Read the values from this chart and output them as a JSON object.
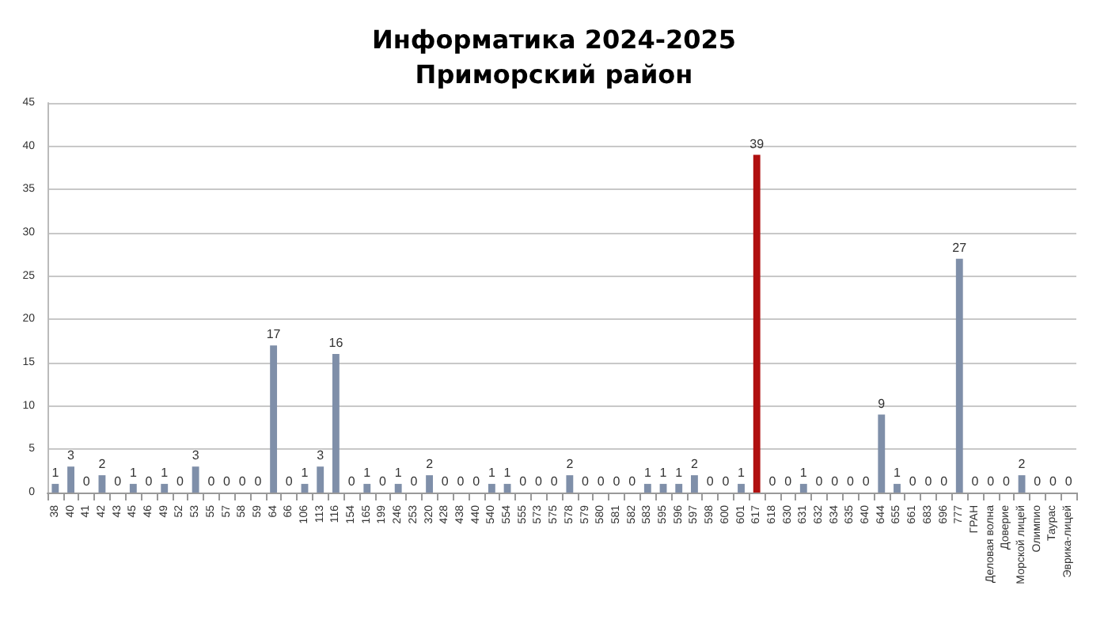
{
  "chart_data": {
    "type": "bar",
    "title": "Информатика 2024-2025",
    "subtitle": "Приморский район",
    "categories": [
      "38",
      "40",
      "41",
      "42",
      "43",
      "45",
      "46",
      "49",
      "52",
      "53",
      "55",
      "57",
      "58",
      "59",
      "64",
      "66",
      "106",
      "113",
      "116",
      "154",
      "165",
      "199",
      "246",
      "253",
      "320",
      "428",
      "438",
      "440",
      "540",
      "554",
      "555",
      "573",
      "575",
      "578",
      "579",
      "580",
      "581",
      "582",
      "583",
      "595",
      "596",
      "597",
      "598",
      "600",
      "601",
      "617",
      "618",
      "630",
      "631",
      "632",
      "634",
      "635",
      "640",
      "644",
      "655",
      "661",
      "683",
      "696",
      "777",
      "ГРАН",
      "Деловая волна",
      "Доверие",
      "Морской лицей",
      "Олимпио",
      "Таурас",
      "Эврика-лицей"
    ],
    "values": [
      1,
      3,
      0,
      2,
      0,
      1,
      0,
      1,
      0,
      3,
      0,
      0,
      0,
      0,
      17,
      0,
      1,
      3,
      16,
      0,
      1,
      0,
      1,
      0,
      2,
      0,
      0,
      0,
      1,
      1,
      0,
      0,
      0,
      2,
      0,
      0,
      0,
      0,
      1,
      1,
      1,
      2,
      0,
      0,
      1,
      39,
      0,
      0,
      1,
      0,
      0,
      0,
      0,
      9,
      1,
      0,
      0,
      0,
      27,
      0,
      0,
      0,
      2,
      0,
      0,
      0
    ],
    "colors": [
      "#7f8fa9",
      "#7f8fa9",
      "#7f8fa9",
      "#7f8fa9",
      "#7f8fa9",
      "#7f8fa9",
      "#7f8fa9",
      "#7f8fa9",
      "#7f8fa9",
      "#7f8fa9",
      "#7f8fa9",
      "#7f8fa9",
      "#7f8fa9",
      "#7f8fa9",
      "#7f8fa9",
      "#7f8fa9",
      "#7f8fa9",
      "#7f8fa9",
      "#7f8fa9",
      "#7f8fa9",
      "#7f8fa9",
      "#7f8fa9",
      "#7f8fa9",
      "#7f8fa9",
      "#7f8fa9",
      "#7f8fa9",
      "#7f8fa9",
      "#7f8fa9",
      "#7f8fa9",
      "#7f8fa9",
      "#7f8fa9",
      "#7f8fa9",
      "#7f8fa9",
      "#7f8fa9",
      "#7f8fa9",
      "#7f8fa9",
      "#7f8fa9",
      "#7f8fa9",
      "#7f8fa9",
      "#7f8fa9",
      "#7f8fa9",
      "#7f8fa9",
      "#7f8fa9",
      "#7f8fa9",
      "#7f8fa9",
      "#b01010",
      "#7f8fa9",
      "#7f8fa9",
      "#7f8fa9",
      "#7f8fa9",
      "#7f8fa9",
      "#7f8fa9",
      "#7f8fa9",
      "#7f8fa9",
      "#7f8fa9",
      "#7f8fa9",
      "#7f8fa9",
      "#7f8fa9",
      "#7f8fa9",
      "#7f8fa9",
      "#7f8fa9",
      "#7f8fa9",
      "#7f8fa9",
      "#7f8fa9",
      "#7f8fa9",
      "#7f8fa9"
    ],
    "ylim": [
      0,
      45
    ],
    "yticks": [
      0,
      5,
      10,
      15,
      20,
      25,
      30,
      35,
      40,
      45
    ],
    "grid": "y",
    "data_labels": true
  }
}
